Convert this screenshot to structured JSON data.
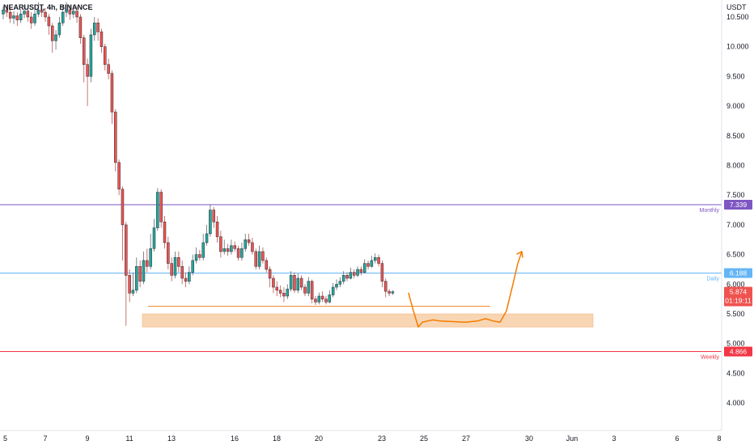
{
  "header": {
    "symbol": "NEARUSDT, 4h, BINANCE"
  },
  "colors": {
    "up": "#26a69a",
    "down": "#ef5350",
    "wick": "#434651",
    "monthly": "#7e57c2",
    "daily": "#64b5f6",
    "weekly": "#f23645",
    "zone": "#f7cfa6",
    "zone_border": "#ef8c2b",
    "projection": "#f57c00",
    "price_badge": "#ef5350"
  },
  "chart_data": {
    "type": "candlestick",
    "title": "",
    "y_unit": "USDT",
    "y_range": [
      3.6,
      10.75
    ],
    "y_ticks": [
      "10.500",
      "10.000",
      "9.500",
      "9.000",
      "8.500",
      "8.000",
      "7.500",
      "7.000",
      "6.500",
      "6.000",
      "5.500",
      "5.000",
      "4.500",
      "4.000"
    ],
    "x_ticks": [
      "5",
      "7",
      "9",
      "11",
      "13",
      "16",
      "18",
      "20",
      "23",
      "25",
      "27",
      "30",
      "Jun",
      "3",
      "6",
      "8"
    ],
    "levels": [
      {
        "name": "Monthly",
        "value": 7.339,
        "label": "7.339"
      },
      {
        "name": "Daily",
        "value": 6.188,
        "label": "6.188"
      },
      {
        "name": "Weekly",
        "value": 4.866,
        "label": "4.866"
      }
    ],
    "current_price": {
      "value": 5.874,
      "label": "5.874",
      "countdown": "01:19:11"
    },
    "support_zone": {
      "from": 5.28,
      "to": 5.5
    },
    "support_line": 5.63,
    "candles": [
      [
        10.55,
        10.62,
        10.68,
        10.46
      ],
      [
        10.62,
        10.58,
        10.7,
        10.5
      ],
      [
        10.58,
        10.48,
        10.65,
        10.4
      ],
      [
        10.48,
        10.52,
        10.6,
        10.38
      ],
      [
        10.52,
        10.45,
        10.58,
        10.35
      ],
      [
        10.45,
        10.55,
        10.63,
        10.4
      ],
      [
        10.55,
        10.6,
        10.7,
        10.48
      ],
      [
        10.6,
        10.5,
        10.68,
        10.42
      ],
      [
        10.5,
        10.4,
        10.58,
        10.3
      ],
      [
        10.4,
        10.55,
        10.62,
        10.35
      ],
      [
        10.55,
        10.62,
        10.75,
        10.5
      ],
      [
        10.62,
        10.58,
        10.7,
        10.5
      ],
      [
        10.58,
        10.5,
        10.65,
        10.42
      ],
      [
        10.5,
        10.35,
        10.55,
        10.2
      ],
      [
        10.35,
        10.1,
        10.4,
        9.9
      ],
      [
        10.1,
        10.2,
        10.28,
        9.95
      ],
      [
        10.2,
        10.4,
        10.5,
        10.15
      ],
      [
        10.4,
        10.58,
        10.7,
        10.35
      ],
      [
        10.58,
        10.62,
        10.75,
        10.5
      ],
      [
        10.62,
        10.55,
        10.7,
        10.45
      ],
      [
        10.55,
        10.6,
        10.7,
        10.48
      ],
      [
        10.6,
        10.5,
        10.68,
        10.4
      ],
      [
        10.5,
        10.15,
        10.55,
        10.05
      ],
      [
        10.15,
        9.7,
        10.2,
        9.4
      ],
      [
        9.7,
        9.5,
        9.8,
        9.0
      ],
      [
        9.5,
        10.2,
        10.3,
        9.4
      ],
      [
        10.2,
        10.4,
        10.5,
        10.1
      ],
      [
        10.4,
        10.25,
        10.48,
        10.1
      ],
      [
        10.25,
        10.0,
        10.3,
        9.9
      ],
      [
        10.0,
        9.7,
        10.05,
        9.6
      ],
      [
        9.7,
        9.55,
        9.8,
        9.45
      ],
      [
        9.55,
        8.9,
        9.6,
        8.7
      ],
      [
        8.9,
        8.05,
        8.95,
        7.9
      ],
      [
        8.05,
        7.6,
        8.1,
        7.5
      ],
      [
        7.6,
        7.0,
        7.65,
        6.4
      ],
      [
        7.0,
        6.15,
        7.05,
        5.3
      ],
      [
        6.15,
        5.85,
        6.25,
        5.7
      ],
      [
        5.85,
        5.9,
        6.2,
        5.8
      ],
      [
        5.9,
        6.3,
        6.45,
        5.85
      ],
      [
        6.3,
        6.05,
        6.4,
        5.95
      ],
      [
        6.05,
        6.4,
        6.55,
        6.0
      ],
      [
        6.4,
        6.3,
        6.6,
        6.2
      ],
      [
        6.3,
        6.6,
        6.85,
        6.25
      ],
      [
        6.6,
        6.95,
        7.1,
        6.55
      ],
      [
        6.95,
        7.55,
        7.62,
        6.9
      ],
      [
        7.55,
        7.05,
        7.6,
        6.95
      ],
      [
        7.05,
        6.7,
        7.15,
        6.6
      ],
      [
        6.7,
        6.35,
        6.8,
        6.25
      ],
      [
        6.35,
        6.15,
        6.45,
        6.05
      ],
      [
        6.15,
        6.45,
        6.55,
        6.1
      ],
      [
        6.45,
        6.3,
        6.55,
        6.2
      ],
      [
        6.3,
        6.1,
        6.4,
        6.0
      ],
      [
        6.1,
        6.05,
        6.2,
        5.95
      ],
      [
        6.05,
        6.2,
        6.3,
        6.0
      ],
      [
        6.2,
        6.4,
        6.5,
        6.15
      ],
      [
        6.4,
        6.5,
        6.62,
        6.35
      ],
      [
        6.5,
        6.45,
        6.58,
        6.4
      ],
      [
        6.45,
        6.7,
        6.85,
        6.4
      ],
      [
        6.7,
        6.85,
        7.0,
        6.65
      ],
      [
        6.85,
        7.25,
        7.35,
        6.8
      ],
      [
        7.25,
        7.05,
        7.3,
        6.95
      ],
      [
        7.05,
        6.8,
        7.15,
        6.7
      ],
      [
        6.8,
        6.55,
        6.9,
        6.45
      ],
      [
        6.55,
        6.6,
        6.75,
        6.5
      ],
      [
        6.6,
        6.55,
        6.68,
        6.48
      ],
      [
        6.55,
        6.65,
        6.75,
        6.5
      ],
      [
        6.65,
        6.6,
        6.72,
        6.55
      ],
      [
        6.6,
        6.45,
        6.65,
        6.4
      ],
      [
        6.45,
        6.6,
        6.7,
        6.4
      ],
      [
        6.6,
        6.75,
        6.85,
        6.55
      ],
      [
        6.75,
        6.7,
        6.85,
        6.65
      ],
      [
        6.7,
        6.55,
        6.78,
        6.5
      ],
      [
        6.55,
        6.3,
        6.6,
        6.25
      ],
      [
        6.3,
        6.55,
        6.65,
        6.25
      ],
      [
        6.55,
        6.4,
        6.62,
        6.35
      ],
      [
        6.4,
        6.25,
        6.45,
        6.2
      ],
      [
        6.25,
        6.1,
        6.3,
        5.95
      ],
      [
        6.1,
        5.95,
        6.15,
        5.85
      ],
      [
        5.95,
        5.9,
        6.05,
        5.8
      ],
      [
        5.9,
        5.85,
        5.98,
        5.78
      ],
      [
        5.85,
        5.8,
        5.95,
        5.7
      ],
      [
        5.8,
        5.92,
        6.0,
        5.75
      ],
      [
        5.92,
        6.15,
        6.22,
        5.88
      ],
      [
        6.15,
        5.9,
        6.2,
        5.85
      ],
      [
        5.9,
        6.1,
        6.18,
        5.85
      ],
      [
        6.1,
        5.95,
        6.15,
        5.9
      ],
      [
        5.95,
        5.85,
        6.0,
        5.8
      ],
      [
        5.85,
        6.05,
        6.12,
        5.8
      ],
      [
        6.05,
        5.75,
        6.08,
        5.68
      ],
      [
        5.75,
        5.7,
        5.8,
        5.65
      ],
      [
        5.7,
        5.8,
        5.86,
        5.66
      ],
      [
        5.8,
        5.75,
        5.88,
        5.7
      ],
      [
        5.75,
        5.7,
        5.8,
        5.66
      ],
      [
        5.7,
        5.82,
        5.9,
        5.68
      ],
      [
        5.82,
        5.95,
        6.02,
        5.78
      ],
      [
        5.95,
        6.0,
        6.08,
        5.9
      ],
      [
        6.0,
        6.05,
        6.12,
        5.95
      ],
      [
        6.05,
        6.15,
        6.22,
        6.0
      ],
      [
        6.15,
        6.1,
        6.2,
        6.05
      ],
      [
        6.1,
        6.2,
        6.28,
        6.08
      ],
      [
        6.2,
        6.15,
        6.25,
        6.1
      ],
      [
        6.15,
        6.25,
        6.3,
        6.12
      ],
      [
        6.25,
        6.2,
        6.3,
        6.15
      ],
      [
        6.2,
        6.35,
        6.42,
        6.18
      ],
      [
        6.35,
        6.3,
        6.4,
        6.25
      ],
      [
        6.3,
        6.4,
        6.48,
        6.28
      ],
      [
        6.4,
        6.45,
        6.52,
        6.35
      ],
      [
        6.45,
        6.35,
        6.5,
        6.3
      ],
      [
        6.35,
        6.05,
        6.4,
        5.95
      ],
      [
        6.05,
        5.88,
        6.1,
        5.78
      ],
      [
        5.88,
        5.85,
        5.92,
        5.8
      ],
      [
        5.85,
        5.874,
        5.9,
        5.82
      ]
    ]
  }
}
